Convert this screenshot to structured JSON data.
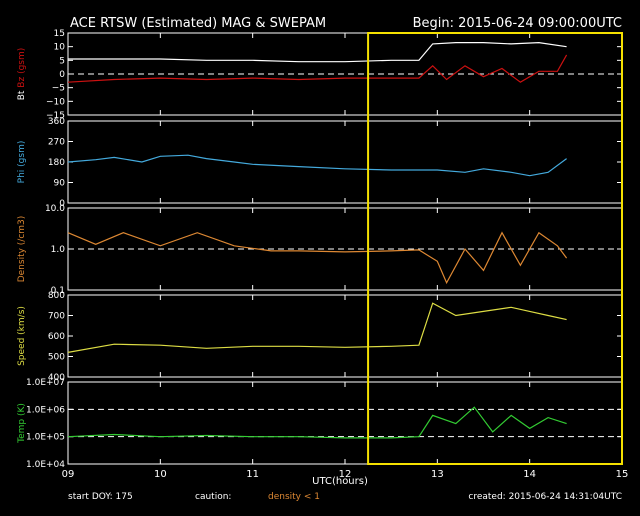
{
  "header": {
    "title": "ACE RTSW (Estimated) MAG & SWEPAM",
    "begin": "Begin: 2015-06-24 09:00:00UTC"
  },
  "footer": {
    "start_doy": "start DOY: 175",
    "caution": "caution:",
    "density_note": "density < 1",
    "created": "created: 2015-06-24 14:31:04UTC"
  },
  "colors": {
    "bt": "#ffffff",
    "bz": "#cc1111",
    "phi": "#44aadd",
    "density": "#dd8833",
    "speed": "#dddd44",
    "temp": "#33cc33",
    "highlight": "#f5e000",
    "density_note": "#dd8833"
  },
  "chart_data": [
    {
      "type": "line",
      "panel": "mag",
      "ylabel": [
        "Bt",
        "Bz",
        "(gsm)"
      ],
      "ylim": [
        -15,
        15
      ],
      "yticks": [
        "15",
        "10",
        "5",
        "0",
        "−5",
        "−10",
        "−15"
      ],
      "yticks_values": [
        15,
        10,
        5,
        0,
        -5,
        -10,
        -15
      ],
      "dashed_at": [
        0
      ],
      "series": [
        {
          "name": "Bt",
          "x": [
            9,
            9.5,
            10,
            10.5,
            11,
            11.5,
            12,
            12.5,
            12.8,
            12.95,
            13.2,
            13.5,
            13.8,
            14.1,
            14.4
          ],
          "y": [
            5.5,
            5.5,
            5.5,
            5,
            5,
            4.5,
            4.5,
            5,
            5,
            11,
            11.5,
            11.5,
            11,
            11.5,
            10
          ]
        },
        {
          "name": "Bz",
          "x": [
            9,
            9.5,
            10,
            10.5,
            11,
            11.5,
            12,
            12.5,
            12.8,
            12.95,
            13.1,
            13.3,
            13.5,
            13.7,
            13.9,
            14.1,
            14.3,
            14.4
          ],
          "y": [
            -3,
            -2,
            -1.5,
            -2,
            -1.5,
            -2,
            -1.5,
            -1.5,
            -1.5,
            3,
            -2,
            3,
            -1,
            2,
            -3,
            1,
            1,
            7
          ]
        }
      ]
    },
    {
      "type": "line",
      "panel": "phi",
      "ylabel": [
        "Phi",
        "(gsm)"
      ],
      "ylim": [
        0,
        360
      ],
      "yticks": [
        "360",
        "270",
        "180",
        "90",
        "0"
      ],
      "yticks_values": [
        360,
        270,
        180,
        90,
        0
      ],
      "dashed_at": [],
      "series": [
        {
          "name": "Phi",
          "x": [
            9,
            9.3,
            9.5,
            9.8,
            10,
            10.3,
            10.5,
            10.8,
            11,
            11.5,
            12,
            12.5,
            13,
            13.3,
            13.5,
            13.8,
            14,
            14.2,
            14.4
          ],
          "y": [
            180,
            190,
            200,
            180,
            205,
            210,
            195,
            180,
            170,
            160,
            150,
            145,
            145,
            135,
            150,
            135,
            120,
            135,
            195
          ]
        }
      ]
    },
    {
      "type": "line",
      "panel": "density",
      "ylabel": [
        "Density",
        "(/cm3)"
      ],
      "yscale": "log",
      "ylim": [
        0.1,
        10
      ],
      "yticks": [
        "10.0",
        "1.0",
        "0.1"
      ],
      "yticks_values": [
        10,
        1,
        0.1
      ],
      "dashed_at": [
        1
      ],
      "series": [
        {
          "name": "Density",
          "x": [
            9,
            9.3,
            9.6,
            10,
            10.4,
            10.8,
            11.2,
            11.5,
            12,
            12.5,
            12.8,
            13.0,
            13.1,
            13.3,
            13.5,
            13.7,
            13.9,
            14.1,
            14.3,
            14.4
          ],
          "y": [
            2.5,
            1.3,
            2.5,
            1.2,
            2.5,
            1.2,
            0.9,
            0.9,
            0.85,
            0.9,
            0.95,
            0.5,
            0.15,
            1.0,
            0.3,
            2.5,
            0.4,
            2.5,
            1.2,
            0.6
          ]
        }
      ]
    },
    {
      "type": "line",
      "panel": "speed",
      "ylabel": [
        "Speed",
        "(km/s)"
      ],
      "ylim": [
        400,
        800
      ],
      "yticks": [
        "800",
        "700",
        "600",
        "500",
        "400"
      ],
      "yticks_values": [
        800,
        700,
        600,
        500,
        400
      ],
      "dashed_at": [],
      "series": [
        {
          "name": "Speed",
          "x": [
            9,
            9.5,
            10,
            10.5,
            11,
            11.5,
            12,
            12.5,
            12.8,
            12.95,
            13.2,
            13.5,
            13.8,
            14.0,
            14.2,
            14.4
          ],
          "y": [
            520,
            560,
            555,
            540,
            550,
            550,
            545,
            550,
            555,
            760,
            700,
            720,
            740,
            720,
            700,
            680
          ]
        }
      ]
    },
    {
      "type": "line",
      "panel": "temp",
      "ylabel": [
        "Temp",
        "(K)"
      ],
      "yscale": "log",
      "ylim": [
        10000,
        10000000
      ],
      "yticks": [
        "1.0E+07",
        "1.0E+06",
        "1.0E+05",
        "1.0E+04"
      ],
      "yticks_values": [
        10000000,
        1000000,
        100000,
        10000
      ],
      "dashed_at": [
        1000000,
        100000
      ],
      "series": [
        {
          "name": "Temp",
          "x": [
            9,
            9.5,
            10,
            10.5,
            11,
            11.5,
            12,
            12.5,
            12.8,
            12.95,
            13.2,
            13.4,
            13.6,
            13.8,
            14.0,
            14.2,
            14.4
          ],
          "y": [
            100000,
            120000,
            100000,
            110000,
            100000,
            100000,
            90000,
            90000,
            100000,
            600000,
            300000,
            1200000,
            150000,
            600000,
            200000,
            500000,
            300000
          ]
        }
      ]
    }
  ],
  "xaxis": {
    "label": "UTC(hours)",
    "xlim": [
      9,
      15
    ],
    "ticks": [
      "09",
      "10",
      "11",
      "12",
      "13",
      "14",
      "15"
    ],
    "tick_values": [
      9,
      10,
      11,
      12,
      13,
      14,
      15
    ]
  },
  "highlight": {
    "x_start": 12.25,
    "x_end": 15
  }
}
